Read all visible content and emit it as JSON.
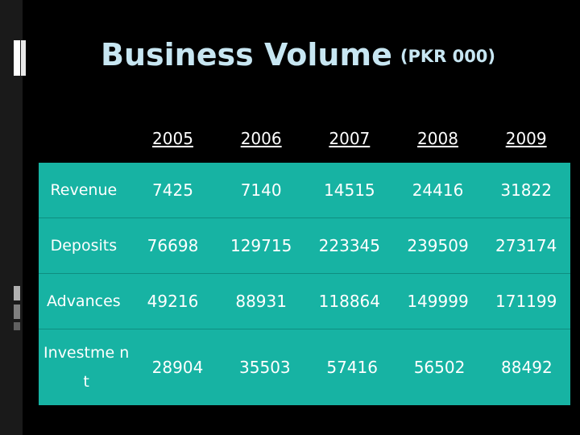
{
  "title": {
    "main": "Business Volume",
    "sub": "(PKR 000)"
  },
  "table": {
    "years": [
      "2005",
      "2006",
      "2007",
      "2008",
      "2009"
    ],
    "rows": [
      {
        "label": "Revenue",
        "values": [
          "7425",
          "7140",
          "14515",
          "24416",
          "31822"
        ]
      },
      {
        "label": "Deposits",
        "values": [
          "76698",
          "129715",
          "223345",
          "239509",
          "273174"
        ]
      },
      {
        "label": "Advances",
        "values": [
          "49216",
          "88931",
          "118864",
          "149999",
          "171199"
        ]
      },
      {
        "label": "Investme nt",
        "values": [
          "28904",
          "35503",
          "57416",
          "56502",
          "88492"
        ]
      }
    ]
  },
  "colors": {
    "background": "#000000",
    "table_fill": "#17b3a3",
    "title_text": "#c7e6f2",
    "cell_text": "#ffffff"
  }
}
